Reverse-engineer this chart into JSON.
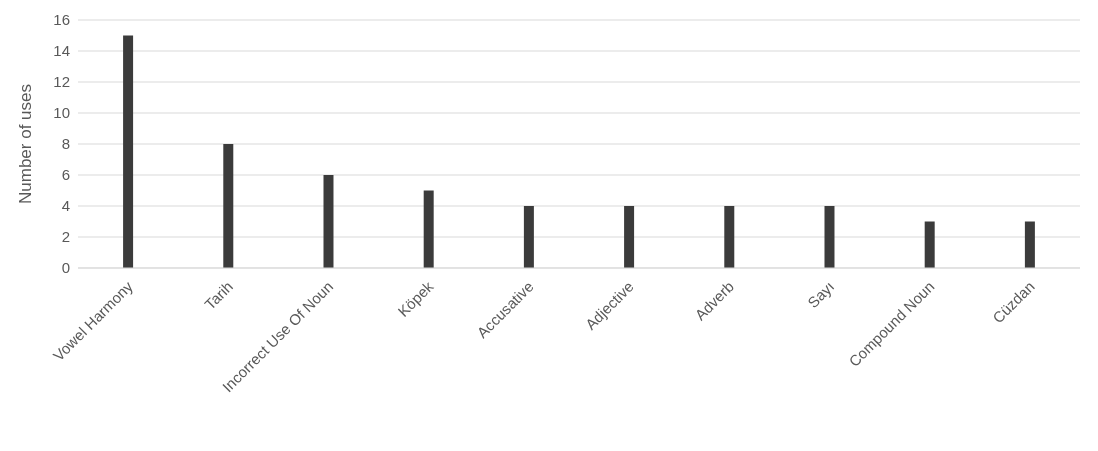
{
  "chart_data": {
    "type": "bar",
    "ylabel": "Number of uses",
    "categories": [
      "Vowel Harmony",
      "Tarih",
      "Incorrect Use Of Noun",
      "Köpek",
      "Accusative",
      "Adjective",
      "Adverb",
      "Sayı",
      "Compound Noun",
      "Cüzdan"
    ],
    "values": [
      15,
      8,
      6,
      5,
      4,
      4,
      4,
      4,
      3,
      3
    ],
    "color": "#3b3b3b",
    "ylim": [
      0,
      16
    ],
    "yticks": [
      0,
      2,
      4,
      6,
      8,
      10,
      12,
      14,
      16
    ],
    "grid": "y"
  }
}
